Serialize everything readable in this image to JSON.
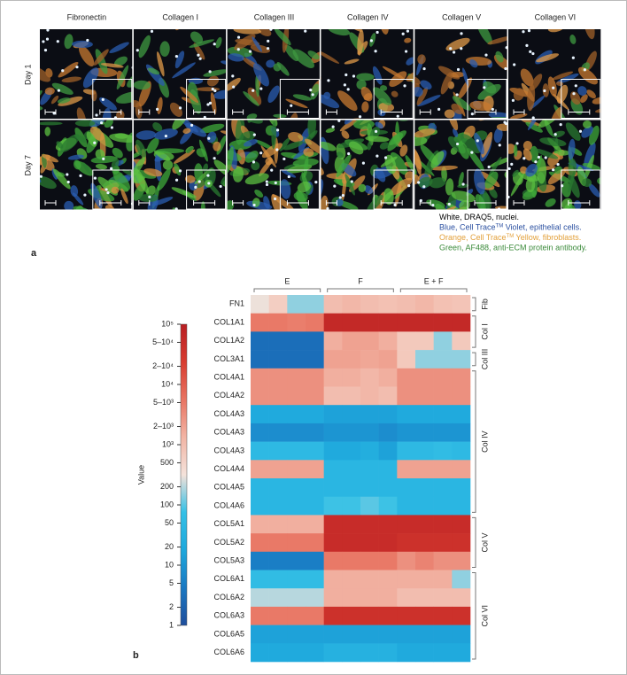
{
  "panel_a": {
    "label": "a",
    "columns": [
      "Fibronectin",
      "Collagen I",
      "Collagen III",
      "Collagen IV",
      "Collagen V",
      "Collagen VI"
    ],
    "rows": [
      "Day 1",
      "Day 7"
    ],
    "legend": [
      {
        "parts": [
          "White, DRAQ5, nuclei."
        ],
        "color": "#000000"
      },
      {
        "parts": [
          "Blue, Cell Trace",
          "TM",
          " Violet, epithelial cells."
        ],
        "color": "#2a4fa0"
      },
      {
        "parts": [
          "Orange, Cell Trace",
          "TM",
          " Yellow, fibroblasts."
        ],
        "color": "#e3a03a"
      },
      {
        "parts": [
          "Green, AF488, anti-ECM protein antibody."
        ],
        "color": "#3a8a3a"
      }
    ]
  },
  "chart_data": {
    "type": "heatmap",
    "label": "b",
    "colorbar_label": "Value",
    "log_scale": true,
    "colormap": [
      "#1f4e9c",
      "#1a78c2",
      "#1ea8dc",
      "#34c0e6",
      "#f4e2da",
      "#f2b4a4",
      "#e87462",
      "#d83c30",
      "#b81e22"
    ],
    "clim": [
      1,
      100000
    ],
    "cticks": [
      1,
      2,
      5,
      10,
      20,
      50,
      100,
      200,
      500,
      {
        "value": 1000,
        "label": "10³"
      },
      {
        "value": 2000,
        "label": "2–10³"
      },
      {
        "value": 5000,
        "label": "5–10³"
      },
      {
        "value": 10000,
        "label": "10⁴"
      },
      {
        "value": 20000,
        "label": "2–10⁴"
      },
      {
        "value": 50000,
        "label": "5–10⁴"
      },
      {
        "value": 100000,
        "label": "10⁵"
      }
    ],
    "column_groups": [
      "E",
      "F",
      "E + F"
    ],
    "row_groups": [
      "Fib",
      "Col I",
      "Col III",
      "Col IV",
      "Col V",
      "Col VI"
    ],
    "rows": [
      "FN1",
      "COL1A1",
      "COL1A2",
      "COL3A1",
      "COL4A1",
      "COL4A2",
      "COL4A3",
      "COL4A3",
      "COL4A3",
      "COL4A4",
      "COL4A5",
      "COL4A6",
      "COL5A1",
      "COL5A2",
      "COL5A3",
      "COL6A1",
      "COL6A2",
      "COL6A3",
      "COL6A5",
      "COL6A6"
    ],
    "values": [
      [
        300,
        600,
        150,
        150,
        1000,
        1200,
        1000,
        900,
        1000,
        1200,
        900,
        800
      ],
      [
        5000,
        5000,
        4500,
        5000,
        60000,
        60000,
        60000,
        60000,
        60000,
        60000,
        60000,
        60000
      ],
      [
        3,
        3,
        3,
        3,
        1500,
        2000,
        2000,
        1500,
        700,
        700,
        150,
        700
      ],
      [
        3,
        3,
        3,
        3,
        2000,
        2000,
        1800,
        2000,
        700,
        150,
        150,
        150
      ],
      [
        3000,
        3000,
        3000,
        3000,
        1500,
        1500,
        1200,
        1500,
        3000,
        3000,
        3000,
        3000
      ],
      [
        3000,
        3000,
        3000,
        3000,
        1000,
        1000,
        1200,
        1000,
        3000,
        3000,
        3000,
        3000
      ],
      [
        20,
        20,
        20,
        20,
        15,
        15,
        15,
        15,
        20,
        20,
        20,
        20
      ],
      [
        8,
        8,
        8,
        8,
        10,
        10,
        10,
        8,
        10,
        10,
        10,
        10
      ],
      [
        50,
        50,
        50,
        50,
        20,
        20,
        25,
        15,
        50,
        50,
        60,
        50
      ],
      [
        2000,
        2000,
        2000,
        2000,
        40,
        40,
        40,
        40,
        2000,
        2000,
        2000,
        2000
      ],
      [
        40,
        40,
        40,
        40,
        40,
        40,
        40,
        40,
        40,
        40,
        40,
        40
      ],
      [
        40,
        40,
        40,
        40,
        80,
        80,
        100,
        80,
        40,
        40,
        40,
        40
      ],
      [
        1500,
        1500,
        1500,
        1500,
        50000,
        50000,
        50000,
        50000,
        50000,
        50000,
        50000,
        50000
      ],
      [
        5000,
        5000,
        5000,
        5000,
        50000,
        50000,
        50000,
        50000,
        40000,
        40000,
        40000,
        40000
      ],
      [
        5,
        5,
        5,
        5,
        5000,
        5000,
        5000,
        5000,
        3000,
        4000,
        3000,
        3000
      ],
      [
        60,
        60,
        60,
        60,
        1500,
        1500,
        1500,
        1500,
        1500,
        1500,
        1500,
        150
      ],
      [
        200,
        200,
        200,
        200,
        1500,
        1500,
        1500,
        1500,
        1000,
        1000,
        1000,
        1000
      ],
      [
        5000,
        5000,
        5000,
        5000,
        40000,
        40000,
        40000,
        40000,
        40000,
        40000,
        40000,
        40000
      ],
      [
        15,
        15,
        15,
        15,
        15,
        15,
        15,
        15,
        15,
        15,
        15,
        15
      ],
      [
        20,
        20,
        20,
        20,
        30,
        30,
        30,
        30,
        20,
        20,
        20,
        20
      ]
    ]
  }
}
